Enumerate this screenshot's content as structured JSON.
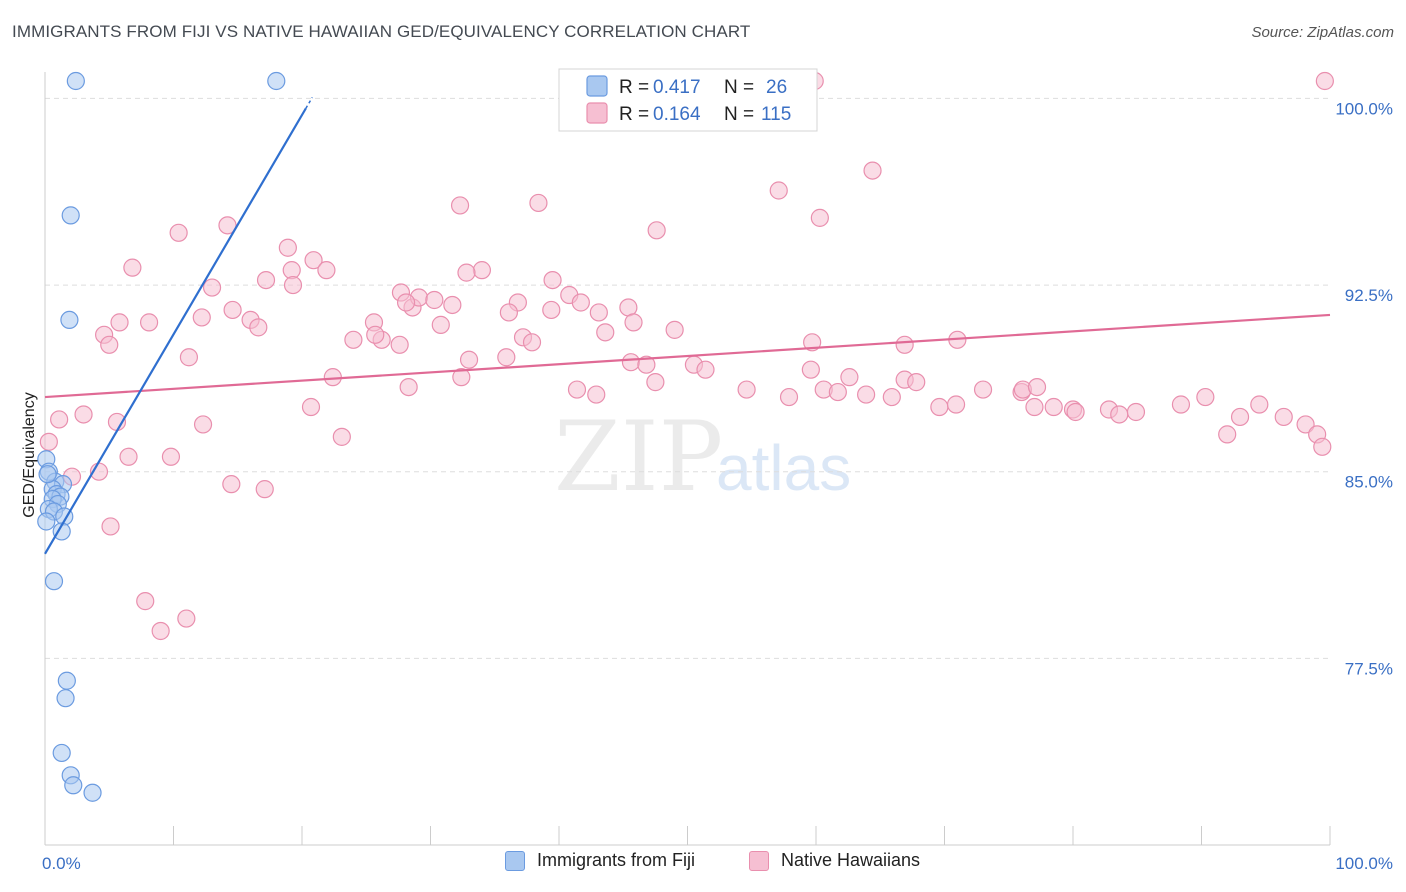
{
  "header": {
    "title": "IMMIGRANTS FROM FIJI VS NATIVE HAWAIIAN GED/EQUIVALENCY CORRELATION CHART",
    "source": "Source: ZipAtlas.com"
  },
  "watermark": {
    "zip": "ZIP",
    "atlas": "atlas"
  },
  "colors": {
    "fiji_fill": "#a9c8f0",
    "fiji_stroke": "#6b9be0",
    "fiji_line": "#2f6fcf",
    "hawaii_fill": "#f6bfd2",
    "hawaii_stroke": "#e98fae",
    "hawaii_line": "#e06a95",
    "tick_label": "#3a6fc4",
    "grid": "#dddddd"
  },
  "legend": {
    "rows": [
      {
        "r_label": "R = ",
        "r_value": "0.417",
        "n_label": "N = ",
        "n_value": "26"
      },
      {
        "r_label": "R = ",
        "r_value": "0.164",
        "n_label": "N = ",
        "n_value": "115"
      }
    ]
  },
  "bottom_legend": {
    "items": [
      "Immigrants from Fiji",
      "Native Hawaiians"
    ]
  },
  "chart_data": {
    "type": "scatter",
    "title": "IMMIGRANTS FROM FIJI VS NATIVE HAWAIIAN GED/EQUIVALENCY CORRELATION CHART",
    "xlabel": "",
    "ylabel": "GED/Equivalency",
    "xlim": [
      0,
      100
    ],
    "ylim": [
      70.0,
      100.7
    ],
    "x_tick_labels": [
      "0.0%",
      "100.0%"
    ],
    "y_ticks": [
      77.5,
      85.0,
      92.5,
      100.0
    ],
    "y_tick_labels": [
      "77.5%",
      "85.0%",
      "92.5%",
      "100.0%"
    ],
    "grid": true,
    "legend_position": "top-center",
    "series": [
      {
        "name": "Immigrants from Fiji",
        "r": 0.417,
        "n": 26,
        "trend": {
          "x": [
            0,
            20.3
          ],
          "y": [
            81.7,
            99.6
          ]
        },
        "points": [
          [
            2.4,
            100.7
          ],
          [
            18.0,
            100.7
          ],
          [
            2.0,
            95.3
          ],
          [
            1.9,
            91.1
          ],
          [
            0.1,
            85.5
          ],
          [
            0.3,
            85.0
          ],
          [
            0.8,
            84.6
          ],
          [
            1.4,
            84.5
          ],
          [
            0.6,
            84.3
          ],
          [
            0.9,
            84.1
          ],
          [
            1.2,
            84.0
          ],
          [
            0.6,
            83.9
          ],
          [
            1.0,
            83.7
          ],
          [
            0.3,
            83.5
          ],
          [
            0.7,
            83.4
          ],
          [
            1.5,
            83.2
          ],
          [
            0.1,
            83.0
          ],
          [
            1.3,
            82.6
          ],
          [
            0.7,
            80.6
          ],
          [
            1.7,
            76.6
          ],
          [
            1.6,
            75.9
          ],
          [
            1.3,
            73.7
          ],
          [
            2.0,
            72.8
          ],
          [
            2.2,
            72.4
          ],
          [
            3.7,
            72.1
          ],
          [
            0.2,
            84.9
          ]
        ]
      },
      {
        "name": "Native Hawaiians",
        "r": 0.164,
        "n": 115,
        "trend": {
          "x": [
            0,
            100
          ],
          "y": [
            88.0,
            91.3
          ]
        },
        "points": [
          [
            59.9,
            100.7
          ],
          [
            99.6,
            100.7
          ],
          [
            64.4,
            97.1
          ],
          [
            57.1,
            96.3
          ],
          [
            38.4,
            95.8
          ],
          [
            32.3,
            95.7
          ],
          [
            60.3,
            95.2
          ],
          [
            14.2,
            94.9
          ],
          [
            47.6,
            94.7
          ],
          [
            10.4,
            94.6
          ],
          [
            18.9,
            94.0
          ],
          [
            19.2,
            93.1
          ],
          [
            20.9,
            93.5
          ],
          [
            21.9,
            93.1
          ],
          [
            6.8,
            93.2
          ],
          [
            34.0,
            93.1
          ],
          [
            32.8,
            93.0
          ],
          [
            19.3,
            92.5
          ],
          [
            17.2,
            92.7
          ],
          [
            13.0,
            92.4
          ],
          [
            27.7,
            92.2
          ],
          [
            28.6,
            91.6
          ],
          [
            29.1,
            92.0
          ],
          [
            30.3,
            91.9
          ],
          [
            28.1,
            91.8
          ],
          [
            36.8,
            91.8
          ],
          [
            39.4,
            91.5
          ],
          [
            40.8,
            92.1
          ],
          [
            41.7,
            91.8
          ],
          [
            39.5,
            92.7
          ],
          [
            45.4,
            91.6
          ],
          [
            31.7,
            91.7
          ],
          [
            43.1,
            91.4
          ],
          [
            45.8,
            91.0
          ],
          [
            25.6,
            91.0
          ],
          [
            16.0,
            91.1
          ],
          [
            14.6,
            91.5
          ],
          [
            16.6,
            90.8
          ],
          [
            12.2,
            91.2
          ],
          [
            8.1,
            91.0
          ],
          [
            5.8,
            91.0
          ],
          [
            4.6,
            90.5
          ],
          [
            30.8,
            90.9
          ],
          [
            43.6,
            90.6
          ],
          [
            49.0,
            90.7
          ],
          [
            26.2,
            90.3
          ],
          [
            27.6,
            90.1
          ],
          [
            37.2,
            90.4
          ],
          [
            36.1,
            91.4
          ],
          [
            25.7,
            90.5
          ],
          [
            24.0,
            90.3
          ],
          [
            37.9,
            90.2
          ],
          [
            59.7,
            90.2
          ],
          [
            66.9,
            90.1
          ],
          [
            71.0,
            90.3
          ],
          [
            5.0,
            90.1
          ],
          [
            11.2,
            89.6
          ],
          [
            33.0,
            89.5
          ],
          [
            35.9,
            89.6
          ],
          [
            45.6,
            89.4
          ],
          [
            46.8,
            89.3
          ],
          [
            50.5,
            89.3
          ],
          [
            51.4,
            89.1
          ],
          [
            59.6,
            89.1
          ],
          [
            62.6,
            88.8
          ],
          [
            66.9,
            88.7
          ],
          [
            67.8,
            88.6
          ],
          [
            73.0,
            88.3
          ],
          [
            76.0,
            88.2
          ],
          [
            76.1,
            88.3
          ],
          [
            77.2,
            88.4
          ],
          [
            22.4,
            88.8
          ],
          [
            28.3,
            88.4
          ],
          [
            32.4,
            88.8
          ],
          [
            41.4,
            88.3
          ],
          [
            42.9,
            88.1
          ],
          [
            47.5,
            88.6
          ],
          [
            54.6,
            88.3
          ],
          [
            57.9,
            88.0
          ],
          [
            60.6,
            88.3
          ],
          [
            61.7,
            88.2
          ],
          [
            63.9,
            88.1
          ],
          [
            65.9,
            88.0
          ],
          [
            69.6,
            87.6
          ],
          [
            70.9,
            87.7
          ],
          [
            77.0,
            87.6
          ],
          [
            78.5,
            87.6
          ],
          [
            80.0,
            87.5
          ],
          [
            80.2,
            87.4
          ],
          [
            82.8,
            87.5
          ],
          [
            83.6,
            87.3
          ],
          [
            84.9,
            87.4
          ],
          [
            88.4,
            87.7
          ],
          [
            90.3,
            88.0
          ],
          [
            92.0,
            86.5
          ],
          [
            93.0,
            87.2
          ],
          [
            94.5,
            87.7
          ],
          [
            96.4,
            87.2
          ],
          [
            98.1,
            86.9
          ],
          [
            99.0,
            86.5
          ],
          [
            99.4,
            86.0
          ],
          [
            0.3,
            86.2
          ],
          [
            1.1,
            87.1
          ],
          [
            3.0,
            87.3
          ],
          [
            5.6,
            87.0
          ],
          [
            12.3,
            86.9
          ],
          [
            20.7,
            87.6
          ],
          [
            2.1,
            84.8
          ],
          [
            4.2,
            85.0
          ],
          [
            6.5,
            85.6
          ],
          [
            9.8,
            85.6
          ],
          [
            14.5,
            84.5
          ],
          [
            17.1,
            84.3
          ],
          [
            23.1,
            86.4
          ],
          [
            5.1,
            82.8
          ],
          [
            7.8,
            79.8
          ],
          [
            9.0,
            78.6
          ],
          [
            11.0,
            79.1
          ]
        ]
      }
    ]
  }
}
